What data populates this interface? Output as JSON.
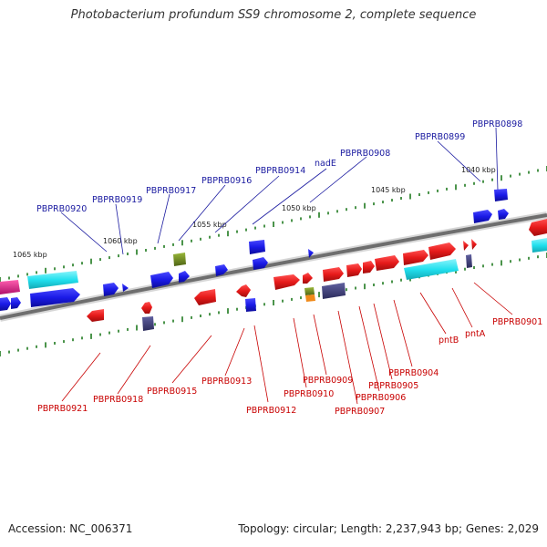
{
  "title": "Photobacterium profundum SS9 chromosome 2, complete sequence",
  "footer": {
    "accession": "Accession: NC_006371",
    "summary": "Topology: circular; Length: 2,237,943 bp; Genes: 2,029"
  },
  "colors": {
    "backbone": "#7a7a7a",
    "top_label": "#1a1aa0",
    "bottom_label": "#c80000",
    "tick": "#1f7a1f",
    "forward_gene": "#1a1ae6",
    "reverse_gene": "#e61a1a",
    "cyan_gene": "#22e0ee",
    "navy_gene": "#3c3c78",
    "olive_gene": "#6f8a22",
    "magenta_gene": "#e0208a"
  },
  "kbp_markers": [
    {
      "id": "1040",
      "label": "1040 kbp"
    },
    {
      "id": "1045",
      "label": "1045 kbp"
    },
    {
      "id": "1050",
      "label": "1050 kbp"
    },
    {
      "id": "1055",
      "label": "1055 kbp"
    },
    {
      "id": "1060",
      "label": "1060 kbp"
    },
    {
      "id": "1065",
      "label": "1065 kbp"
    }
  ],
  "top_labels": [
    {
      "id": "PBPRB0898",
      "text": "PBPRB0898"
    },
    {
      "id": "PBPRB0899",
      "text": "PBPRB0899"
    },
    {
      "id": "PBPRB0908",
      "text": "PBPRB0908"
    },
    {
      "id": "nadE",
      "text": "nadE"
    },
    {
      "id": "PBPRB0914",
      "text": "PBPRB0914"
    },
    {
      "id": "PBPRB0916",
      "text": "PBPRB0916"
    },
    {
      "id": "PBPRB0917",
      "text": "PBPRB0917"
    },
    {
      "id": "PBPRB0919",
      "text": "PBPRB0919"
    },
    {
      "id": "PBPRB0920",
      "text": "PBPRB0920"
    }
  ],
  "bottom_labels": [
    {
      "id": "PBPRB0901",
      "text": "PBPRB0901"
    },
    {
      "id": "pntA",
      "text": "pntA"
    },
    {
      "id": "pntB",
      "text": "pntB"
    },
    {
      "id": "PBPRB0904",
      "text": "PBPRB0904"
    },
    {
      "id": "PBPRB0905",
      "text": "PBPRB0905"
    },
    {
      "id": "PBPRB0906",
      "text": "PBPRB0906"
    },
    {
      "id": "PBPRB0907",
      "text": "PBPRB0907"
    },
    {
      "id": "PBPRB0909",
      "text": "PBPRB0909"
    },
    {
      "id": "PBPRB0910",
      "text": "PBPRB0910"
    },
    {
      "id": "PBPRB0912",
      "text": "PBPRB0912"
    },
    {
      "id": "PBPRB0913",
      "text": "PBPRB0913"
    },
    {
      "id": "PBPRB0915",
      "text": "PBPRB0915"
    },
    {
      "id": "PBPRB0918",
      "text": "PBPRB0918"
    },
    {
      "id": "PBPRB0921",
      "text": "PBPRB0921"
    }
  ]
}
